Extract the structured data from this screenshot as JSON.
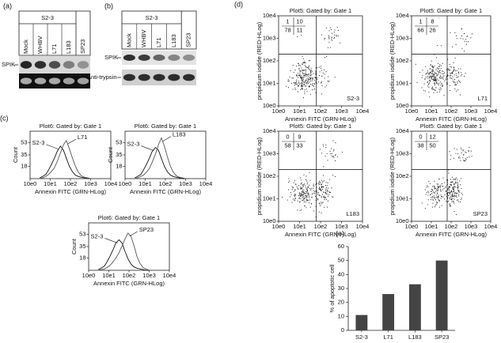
{
  "panels": {
    "a": {
      "label": "(a)",
      "group": "S2-3",
      "lanes": [
        "Mock",
        "WHBV",
        "L71",
        "L183",
        "SP23"
      ],
      "rows": [
        "SPIK"
      ]
    },
    "b": {
      "label": "(b)",
      "group": "S2-3",
      "lanes": [
        "Mock",
        "WHBV",
        "L71",
        "L183",
        "SP23"
      ],
      "rows": [
        "SPIK",
        "Anti-trypsin"
      ]
    },
    "c": {
      "label": "(c)"
    },
    "d": {
      "label": "(d)"
    },
    "e": {
      "label": "(e)"
    }
  },
  "chart_data": [
    {
      "type": "line",
      "title": "Plot6: Gated by: Gate 1",
      "x_label": "Annexin FITC (GRN-HLog)",
      "y_label": "Count",
      "log_x": true,
      "x": [
        3,
        4,
        6,
        8,
        11,
        16,
        22,
        32,
        45,
        63,
        89,
        126,
        178,
        251,
        355,
        501,
        708,
        1000
      ],
      "series": [
        {
          "name": "S2-3",
          "color": "#111111",
          "values": [
            1,
            3,
            6,
            12,
            20,
            30,
            40,
            48,
            42,
            30,
            18,
            10,
            5,
            3,
            2,
            1,
            0,
            0
          ]
        },
        {
          "name": "L71",
          "color": "#555555",
          "values": [
            0,
            1,
            3,
            6,
            10,
            16,
            25,
            38,
            50,
            56,
            44,
            30,
            18,
            9,
            4,
            2,
            1,
            0
          ]
        }
      ],
      "xlim": [
        1,
        10000
      ],
      "xticks": [
        {
          "value": 1,
          "label": "10e0"
        },
        {
          "value": 10,
          "label": "10e1"
        },
        {
          "value": 100,
          "label": "10e2"
        },
        {
          "value": 1000,
          "label": "10e3"
        },
        {
          "value": 10000,
          "label": "10e4"
        }
      ],
      "ylim": [
        0,
        70
      ],
      "yticks": [
        18,
        35,
        53
      ]
    },
    {
      "type": "line",
      "title": "Plot6: Gated by: Gate 1",
      "x_label": "Annexin FITC (GRN-HLog)",
      "y_label": "Count",
      "log_x": true,
      "x": [
        3,
        4,
        6,
        8,
        11,
        16,
        22,
        32,
        45,
        63,
        89,
        126,
        178,
        251,
        355,
        501,
        708,
        1000
      ],
      "series": [
        {
          "name": "S2-3",
          "color": "#111111",
          "values": [
            1,
            3,
            6,
            12,
            20,
            30,
            40,
            46,
            42,
            30,
            18,
            10,
            5,
            3,
            2,
            1,
            0,
            0
          ]
        },
        {
          "name": "L183",
          "color": "#555555",
          "values": [
            0,
            1,
            3,
            5,
            9,
            15,
            24,
            36,
            50,
            60,
            48,
            32,
            18,
            9,
            4,
            2,
            1,
            0
          ]
        }
      ],
      "xlim": [
        1,
        10000
      ],
      "xticks": [
        {
          "value": 1,
          "label": "10e0"
        },
        {
          "value": 10,
          "label": "10e1"
        },
        {
          "value": 100,
          "label": "10e2"
        },
        {
          "value": 1000,
          "label": "10e3"
        },
        {
          "value": 10000,
          "label": "10e4"
        }
      ],
      "ylim": [
        0,
        70
      ],
      "yticks": [
        18,
        35,
        53
      ]
    },
    {
      "type": "line",
      "title": "Plot6: Gated by: Gate 1",
      "x_label": "Annexin FITC (GRN-HLog)",
      "y_label": "Count",
      "log_x": true,
      "x": [
        3,
        4,
        6,
        8,
        11,
        16,
        22,
        32,
        45,
        63,
        89,
        126,
        178,
        251,
        355,
        501,
        708,
        1000
      ],
      "series": [
        {
          "name": "S2-3",
          "color": "#111111",
          "values": [
            1,
            3,
            6,
            12,
            20,
            30,
            40,
            45,
            40,
            28,
            17,
            9,
            5,
            3,
            2,
            1,
            0,
            0
          ]
        },
        {
          "name": "SP23",
          "color": "#555555",
          "values": [
            0,
            1,
            2,
            4,
            7,
            12,
            18,
            26,
            36,
            46,
            55,
            50,
            36,
            20,
            10,
            4,
            2,
            0
          ]
        }
      ],
      "xlim": [
        1,
        10000
      ],
      "xticks": [
        {
          "value": 1,
          "label": "10e0"
        },
        {
          "value": 10,
          "label": "10e1"
        },
        {
          "value": 100,
          "label": "10e2"
        },
        {
          "value": 1000,
          "label": "10e3"
        },
        {
          "value": 10000,
          "label": "10e4"
        }
      ],
      "ylim": [
        0,
        70
      ],
      "yticks": [
        18,
        35,
        53
      ]
    },
    {
      "type": "quadrant",
      "title": "Plot5: Gated by: Gate 1",
      "x_label": "Annexin FITC (GRN-HLog)",
      "y_label": "propidium iodide (RED-HLog)",
      "sample": "S2-3",
      "quadrants": [
        [
          1,
          10
        ],
        [
          78,
          11
        ]
      ],
      "xlim": [
        1,
        10000
      ],
      "xticks": [
        {
          "value": 1,
          "label": "10e0"
        },
        {
          "value": 10,
          "label": "10e1"
        },
        {
          "value": 100,
          "label": "10e2"
        },
        {
          "value": 1000,
          "label": "10e3"
        },
        {
          "value": 10000,
          "label": "10e4"
        }
      ],
      "ylim": [
        1,
        10000
      ],
      "yticks": [
        {
          "value": 1,
          "label": "10e0"
        },
        {
          "value": 10,
          "label": "10e1"
        },
        {
          "value": 100,
          "label": "10e2"
        },
        {
          "value": 1000,
          "label": "10e3"
        },
        {
          "value": 10000,
          "label": "10e4"
        }
      ]
    },
    {
      "type": "quadrant",
      "title": "Plot5: Gated by: Gate 1",
      "x_label": "Annexin FITC (GRN-HLog)",
      "y_label": "propidium iodide (RED-HLog)",
      "sample": "L71",
      "quadrants": [
        [
          1,
          8
        ],
        [
          66,
          26
        ]
      ],
      "xlim": [
        1,
        10000
      ],
      "xticks": [
        {
          "value": 1,
          "label": "10e0"
        },
        {
          "value": 10,
          "label": "10e1"
        },
        {
          "value": 100,
          "label": "10e2"
        },
        {
          "value": 1000,
          "label": "10e3"
        },
        {
          "value": 10000,
          "label": "10e4"
        }
      ],
      "ylim": [
        1,
        10000
      ],
      "yticks": [
        {
          "value": 1,
          "label": "10e0"
        },
        {
          "value": 10,
          "label": "10e1"
        },
        {
          "value": 100,
          "label": "10e2"
        },
        {
          "value": 1000,
          "label": "10e3"
        },
        {
          "value": 10000,
          "label": "10e4"
        }
      ]
    },
    {
      "type": "quadrant",
      "title": "Plot5: Gated by: Gate 1",
      "x_label": "Annexin FITC (GRN-HLog)",
      "y_label": "propidium iodide (RED-HLog)",
      "sample": "L183",
      "quadrants": [
        [
          0,
          9
        ],
        [
          58,
          33
        ]
      ],
      "xlim": [
        1,
        10000
      ],
      "xticks": [
        {
          "value": 1,
          "label": "10e0"
        },
        {
          "value": 10,
          "label": "10e1"
        },
        {
          "value": 100,
          "label": "10e2"
        },
        {
          "value": 1000,
          "label": "10e3"
        },
        {
          "value": 10000,
          "label": "10e4"
        }
      ],
      "ylim": [
        1,
        10000
      ],
      "yticks": [
        {
          "value": 1,
          "label": "10e0"
        },
        {
          "value": 10,
          "label": "10e1"
        },
        {
          "value": 100,
          "label": "10e2"
        },
        {
          "value": 1000,
          "label": "10e3"
        },
        {
          "value": 10000,
          "label": "10e4"
        }
      ]
    },
    {
      "type": "quadrant",
      "title": "Plot5: Gated by: Gate 1",
      "x_label": "Annexin FITC (GRN-HLog)",
      "y_label": "propidium iodide (RED-HLog)",
      "sample": "SP23",
      "quadrants": [
        [
          0,
          12
        ],
        [
          38,
          50
        ]
      ],
      "xlim": [
        1,
        10000
      ],
      "xticks": [
        {
          "value": 1,
          "label": "10e0"
        },
        {
          "value": 10,
          "label": "10e1"
        },
        {
          "value": 100,
          "label": "10e2"
        },
        {
          "value": 1000,
          "label": "10e3"
        },
        {
          "value": 10000,
          "label": "10e4"
        }
      ],
      "ylim": [
        1,
        10000
      ],
      "yticks": [
        {
          "value": 1,
          "label": "10e0"
        },
        {
          "value": 10,
          "label": "10e1"
        },
        {
          "value": 100,
          "label": "10e2"
        },
        {
          "value": 1000,
          "label": "10e3"
        },
        {
          "value": 10000,
          "label": "10e4"
        }
      ]
    },
    {
      "type": "bar",
      "y_label": "% of apoptotic cell",
      "categories": [
        "S2-3",
        "L71",
        "L183",
        "SP23"
      ],
      "values": [
        11,
        26,
        33,
        50
      ],
      "color": "#444444",
      "ylim": [
        0,
        60
      ],
      "yticks": [
        0,
        10,
        20,
        30,
        40,
        50,
        60
      ]
    }
  ]
}
